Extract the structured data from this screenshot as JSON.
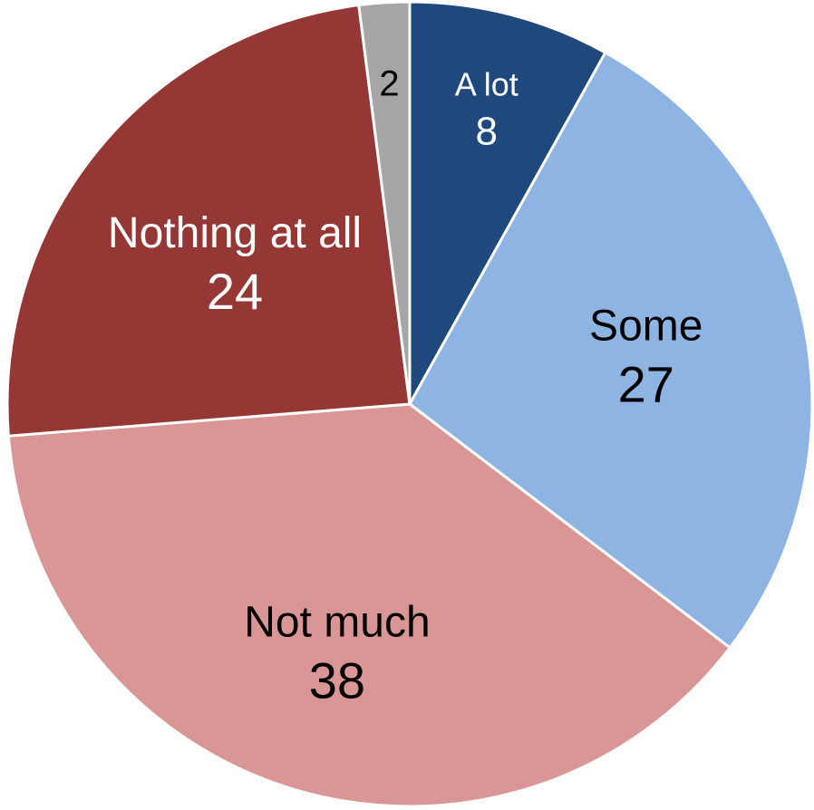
{
  "chart_data": {
    "type": "pie",
    "start_angle_deg": 0,
    "direction": "clockwise",
    "legend": "none",
    "slices": [
      {
        "label": "A lot",
        "value": 8,
        "color": "#1f497d",
        "text_color": "#ffffff"
      },
      {
        "label": "Some",
        "value": 27,
        "color": "#8eb4e3",
        "text_color": "#000000"
      },
      {
        "label": "Not much",
        "value": 38,
        "color": "#d99694",
        "text_color": "#000000"
      },
      {
        "label": "Nothing at all",
        "value": 24,
        "color": "#953735",
        "text_color": "#ffffff"
      },
      {
        "label": "",
        "value": 2,
        "color": "#a6a6a6",
        "text_color": "#000000"
      }
    ]
  }
}
